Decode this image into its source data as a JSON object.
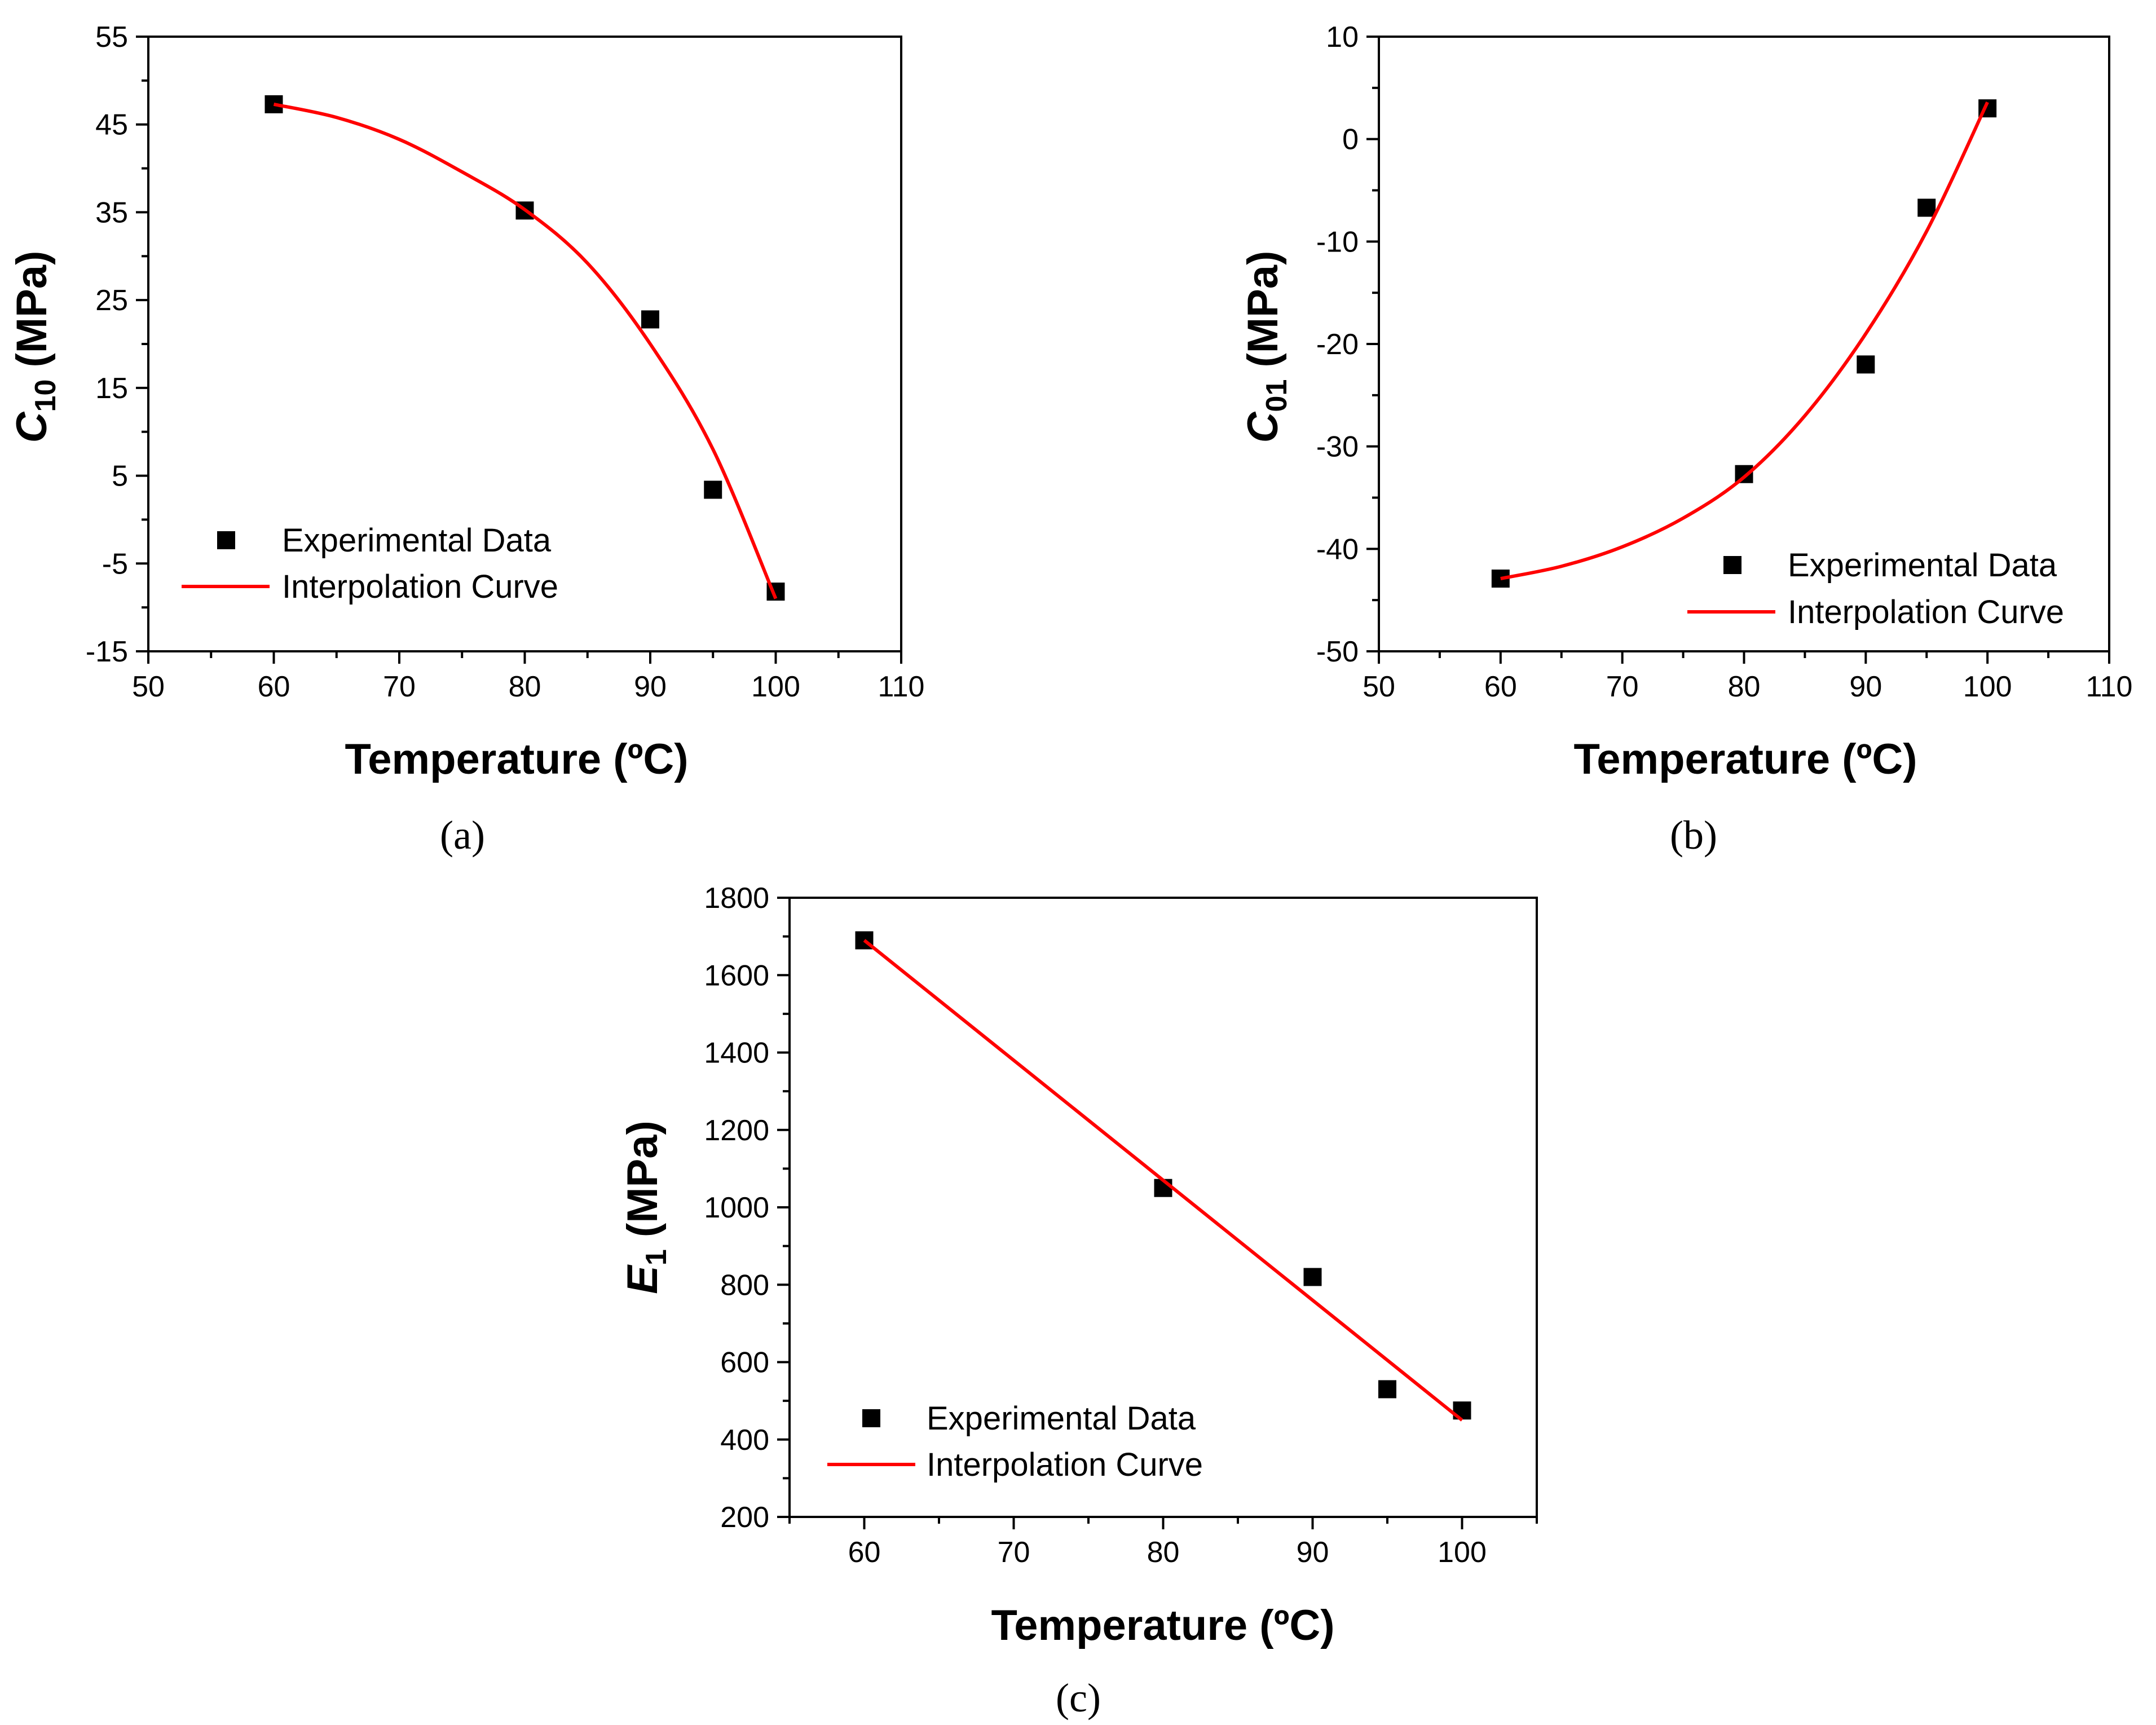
{
  "colors": {
    "marker": "#000000",
    "curve": "#ff0000",
    "axis": "#000000",
    "background": "#ffffff"
  },
  "chart_data": [
    {
      "panel": "(a)",
      "type": "scatter",
      "title": "",
      "xlabel": "Temperature (ºC)",
      "ylabel_main": "C",
      "ylabel_sub": "10",
      "ylabel_unit": " (MPa)",
      "xlim": [
        50,
        110
      ],
      "ylim": [
        -15,
        55
      ],
      "xticks": [
        "50",
        "60",
        "70",
        "80",
        "90",
        "100",
        "110"
      ],
      "yticks": [
        "-15",
        "-5",
        "5",
        "15",
        "25",
        "35",
        "45",
        "55"
      ],
      "legend_position": "bottom-left",
      "series": [
        {
          "name": "Experimental Data",
          "kind": "marker",
          "x": [
            60,
            80,
            90,
            95,
            100
          ],
          "y": [
            47.3,
            35.2,
            22.8,
            3.4,
            -8.2
          ]
        },
        {
          "name": "Interpolation Curve",
          "kind": "line",
          "x": [
            60,
            65,
            70,
            75,
            80,
            85,
            90,
            95,
            100
          ],
          "y": [
            47.3,
            45.8,
            43.3,
            39.6,
            35.3,
            29.2,
            20.0,
            8.0,
            -9.0
          ]
        }
      ]
    },
    {
      "panel": "(b)",
      "type": "scatter",
      "title": "",
      "xlabel": "Temperature (ºC)",
      "ylabel_main": "C",
      "ylabel_sub": "01",
      "ylabel_unit": " (MPa)",
      "xlim": [
        50,
        110
      ],
      "ylim": [
        -50,
        10
      ],
      "xticks": [
        "50",
        "60",
        "70",
        "80",
        "90",
        "100",
        "110"
      ],
      "yticks": [
        "-50",
        "-40",
        "-30",
        "-20",
        "-10",
        "0",
        "10"
      ],
      "legend_position": "bottom-right",
      "series": [
        {
          "name": "Experimental Data",
          "kind": "marker",
          "x": [
            60,
            80,
            90,
            95,
            100
          ],
          "y": [
            -42.9,
            -32.7,
            -22.0,
            -6.7,
            3.0
          ]
        },
        {
          "name": "Interpolation Curve",
          "kind": "line",
          "x": [
            60,
            65,
            70,
            75,
            80,
            85,
            90,
            95,
            100
          ],
          "y": [
            -42.9,
            -41.7,
            -39.8,
            -37.0,
            -33.0,
            -27.0,
            -19.0,
            -9.0,
            3.6
          ]
        }
      ]
    },
    {
      "panel": "(c)",
      "type": "scatter",
      "title": "",
      "xlabel": "Temperature (ºC)",
      "ylabel_main": "E",
      "ylabel_sub": "1",
      "ylabel_unit": " (MPa)",
      "xlim": [
        55,
        105
      ],
      "ylim": [
        200,
        1800
      ],
      "xticks": [
        "60",
        "70",
        "80",
        "90",
        "100"
      ],
      "yticks": [
        "200",
        "400",
        "600",
        "800",
        "1000",
        "1200",
        "1400",
        "1600",
        "1800"
      ],
      "legend_position": "bottom-left",
      "series": [
        {
          "name": "Experimental Data",
          "kind": "marker",
          "x": [
            60,
            80,
            90,
            95,
            100
          ],
          "y": [
            1690,
            1050,
            820,
            530,
            475
          ]
        },
        {
          "name": "Interpolation Curve",
          "kind": "line",
          "x": [
            60,
            100
          ],
          "y": [
            1690,
            450
          ]
        }
      ]
    }
  ]
}
